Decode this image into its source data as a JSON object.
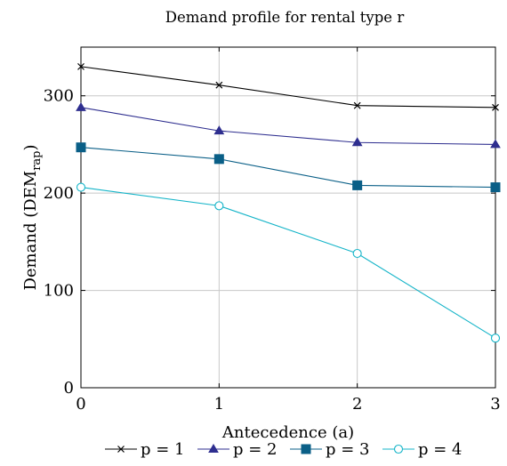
{
  "chart_data": {
    "type": "line",
    "title": "Demand profile for rental type r",
    "xlabel": "Antecedence (a)",
    "ylabel": "Demand (DEM",
    "ylabel_subscript": "rap",
    "ylabel_close": ")",
    "x": [
      0,
      1,
      2,
      3
    ],
    "x_ticks": [
      "0",
      "1",
      "2",
      "3"
    ],
    "xlim": [
      0,
      3
    ],
    "y_ticks": [
      "0",
      "100",
      "200",
      "300"
    ],
    "y_tick_values": [
      0,
      100,
      200,
      300
    ],
    "ylim": [
      0,
      350
    ],
    "grid": true,
    "legend_position": "bottom",
    "series": [
      {
        "name": "p = 1",
        "values": [
          330,
          311,
          290,
          288
        ],
        "color": "#000000",
        "marker": "x"
      },
      {
        "name": "p = 2",
        "values": [
          288,
          264,
          252,
          250
        ],
        "color": "#2e2e8f",
        "marker": "triangle"
      },
      {
        "name": "p = 3",
        "values": [
          247,
          235,
          208,
          206
        ],
        "color": "#0a5f87",
        "marker": "square"
      },
      {
        "name": "p = 4",
        "values": [
          206,
          187,
          138,
          51
        ],
        "color": "#14b4c8",
        "marker": "circle-open"
      }
    ]
  }
}
